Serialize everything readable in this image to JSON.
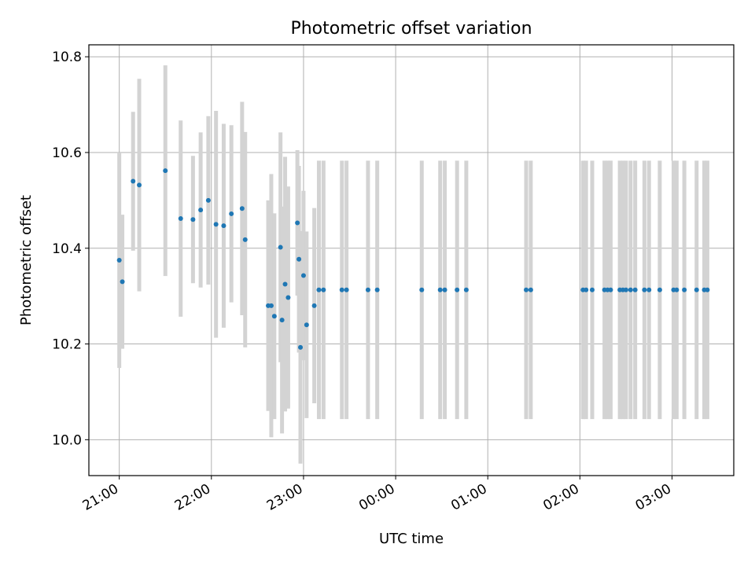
{
  "chart_data": {
    "type": "scatter",
    "title": "Photometric offset variation",
    "xlabel": "UTC time",
    "ylabel": "Photometric offset",
    "x_ticks": [
      "21:00",
      "22:00",
      "23:00",
      "00:00",
      "01:00",
      "02:00",
      "03:00"
    ],
    "y_ticks": [
      "10.0",
      "10.2",
      "10.4",
      "10.6",
      "10.8"
    ],
    "xlim_hours": [
      20.67,
      27.67
    ],
    "ylim": [
      9.925,
      10.825
    ],
    "grid": true,
    "colors": {
      "point": "#1f77b4",
      "errorbar": "#d3d3d3",
      "grid": "#b0b0b0"
    },
    "series": [
      {
        "x": [
          "21:00",
          "21:02",
          "21:09",
          "21:13",
          "21:30",
          "21:40",
          "21:48",
          "21:53",
          "21:58",
          "22:03",
          "22:08",
          "22:13",
          "22:20",
          "22:22",
          "22:37",
          "22:39",
          "22:41",
          "22:45",
          "22:46",
          "22:48",
          "22:50",
          "22:56",
          "22:57",
          "22:58",
          "23:00",
          "23:02",
          "23:07",
          "23:10",
          "23:13",
          "23:25",
          "23:28",
          "23:42",
          "23:48",
          "00:17",
          "00:29",
          "00:32",
          "00:40",
          "00:46",
          "01:25",
          "01:28",
          "02:02",
          "02:04",
          "02:08",
          "02:16",
          "02:18",
          "02:20",
          "02:26",
          "02:28",
          "02:30",
          "02:33",
          "02:36",
          "02:42",
          "02:45",
          "02:52",
          "03:01",
          "03:03",
          "03:08",
          "03:16",
          "03:21",
          "03:23"
        ],
        "y": [
          10.375,
          10.33,
          10.54,
          10.532,
          10.562,
          10.462,
          10.46,
          10.48,
          10.5,
          10.45,
          10.447,
          10.472,
          10.483,
          10.418,
          10.28,
          10.28,
          10.258,
          10.402,
          10.25,
          10.325,
          10.297,
          10.453,
          10.377,
          10.193,
          10.343,
          10.24,
          10.28,
          10.313,
          10.313,
          10.313,
          10.313,
          10.313,
          10.313,
          10.313,
          10.313,
          10.313,
          10.313,
          10.313,
          10.313,
          10.313,
          10.313,
          10.313,
          10.313,
          10.313,
          10.313,
          10.313,
          10.313,
          10.313,
          10.313,
          10.313,
          10.313,
          10.313,
          10.313,
          10.313,
          10.313,
          10.313,
          10.313,
          10.313,
          10.313,
          10.313
        ],
        "yerr": [
          0.225,
          0.14,
          0.145,
          0.222,
          0.22,
          0.205,
          0.133,
          0.162,
          0.176,
          0.237,
          0.213,
          0.185,
          0.223,
          0.225,
          0.22,
          0.275,
          0.215,
          0.24,
          0.237,
          0.266,
          0.232,
          0.152,
          0.195,
          0.243,
          0.177,
          0.195,
          0.204,
          0.27,
          0.27,
          0.27,
          0.27,
          0.27,
          0.27,
          0.27,
          0.27,
          0.27,
          0.27,
          0.27,
          0.27,
          0.27,
          0.27,
          0.27,
          0.27,
          0.27,
          0.27,
          0.27,
          0.27,
          0.27,
          0.27,
          0.27,
          0.27,
          0.27,
          0.27,
          0.27,
          0.27,
          0.27,
          0.27,
          0.27,
          0.27,
          0.27
        ]
      }
    ]
  }
}
